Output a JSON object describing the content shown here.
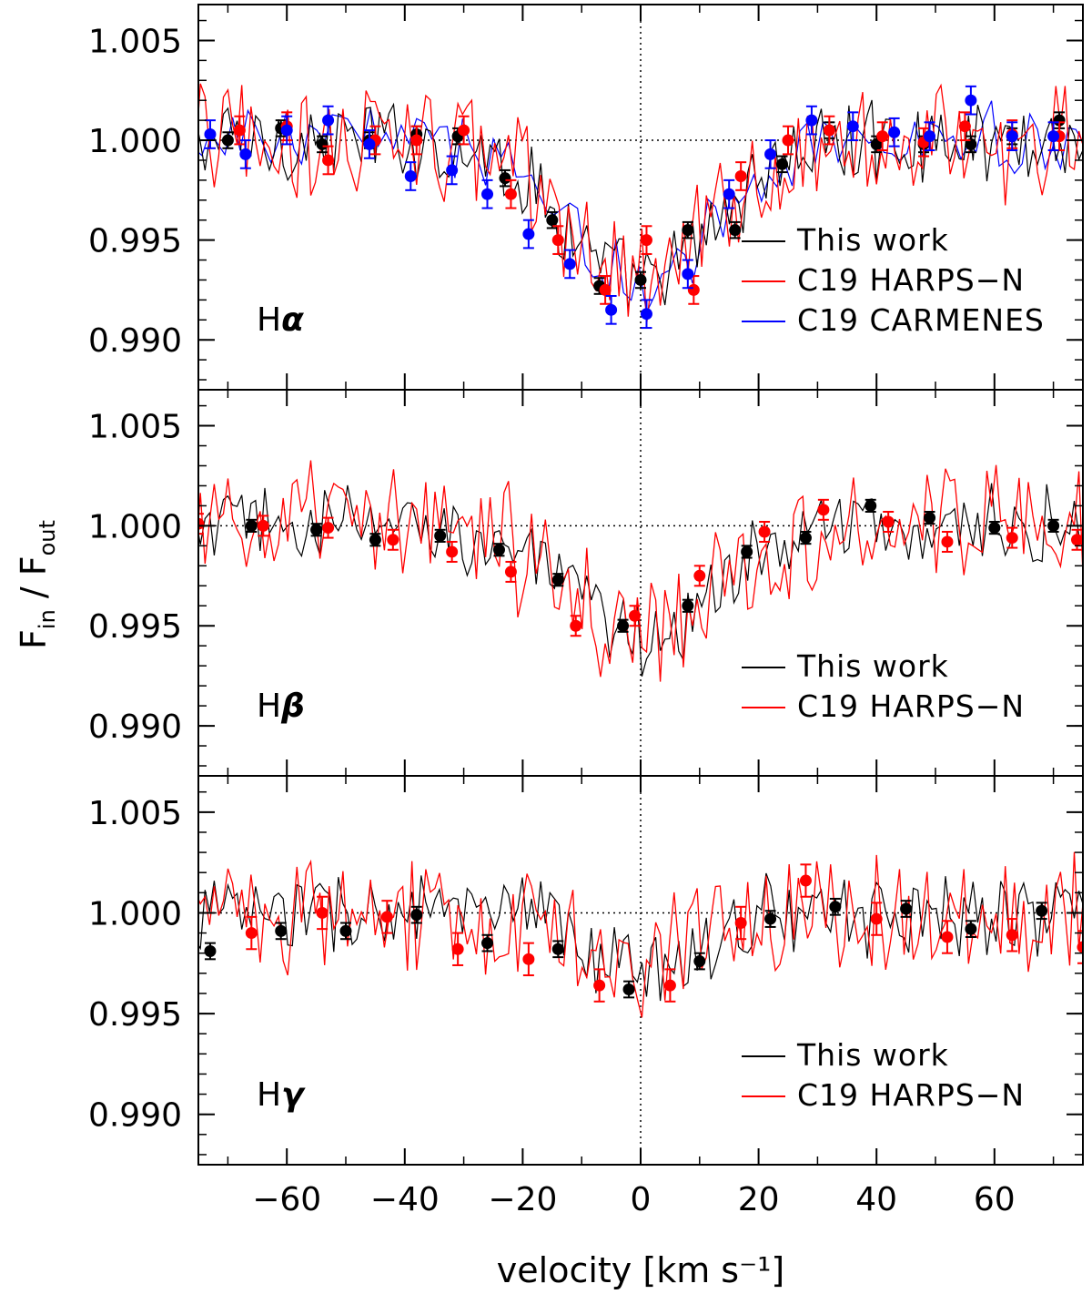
{
  "chart_data": {
    "type": "line",
    "x_label": "velocity [km s⁻¹]",
    "y_label": "F_in / F_out",
    "y_label_parts": {
      "f1": "F",
      "sub1": "in",
      "sep": " / ",
      "f2": "F",
      "sub2": "out"
    },
    "x_range": [
      -75,
      75
    ],
    "y_range": [
      0.9875,
      1.0068
    ],
    "x_ticks": [
      -60,
      -40,
      -20,
      0,
      20,
      40,
      60
    ],
    "x_tick_labels": [
      "−60",
      "−40",
      "−20",
      "0",
      "20",
      "40",
      "60"
    ],
    "y_ticks": [
      0.99,
      0.995,
      1.0,
      1.005
    ],
    "y_tick_labels": [
      "0.990",
      "0.995",
      "1.000",
      "1.005"
    ],
    "reference_lines": {
      "y": 1.0,
      "x": 0
    },
    "colors": {
      "this_work": "#000000",
      "harps": "#ff0000",
      "carmenes": "#0000ff"
    },
    "panels": [
      {
        "label_prefix": "H",
        "label_greek": "α",
        "legend": [
          "This work",
          "C19 HARPS−N",
          "C19 CARMENES"
        ],
        "profile": {
          "depth": 0.0072,
          "width": 18
        },
        "series": [
          {
            "name": "This work",
            "color": "#000000",
            "points": [
              [
                -70,
                1.0
              ],
              [
                -61,
                1.0006
              ],
              [
                -54,
                0.9998
              ],
              [
                -46,
                1.0
              ],
              [
                -38,
                1.0003
              ],
              [
                -31,
                1.0002
              ],
              [
                -23,
                0.9981
              ],
              [
                -15,
                0.996
              ],
              [
                -7,
                0.9927
              ],
              [
                0,
                0.993
              ],
              [
                8,
                0.9955
              ],
              [
                16,
                0.9955
              ],
              [
                24,
                0.9988
              ],
              [
                32,
                1.0005
              ],
              [
                40,
                0.9998
              ],
              [
                48,
                0.9998
              ],
              [
                56,
                0.9998
              ],
              [
                63,
                1.0002
              ],
              [
                71,
                1.001
              ]
            ],
            "err": 0.0004
          },
          {
            "name": "C19 HARPS−N",
            "color": "#ff0000",
            "points": [
              [
                -68,
                1.0005
              ],
              [
                -60,
                1.0007
              ],
              [
                -53,
                0.999
              ],
              [
                -45,
                1.0
              ],
              [
                -38,
                1.0
              ],
              [
                -30,
                1.0005
              ],
              [
                -22,
                0.9973
              ],
              [
                -14,
                0.995
              ],
              [
                -6,
                0.9925
              ],
              [
                1,
                0.995
              ],
              [
                9,
                0.9925
              ],
              [
                17,
                0.9982
              ],
              [
                25,
                1.0
              ],
              [
                32,
                1.0005
              ],
              [
                41,
                1.0002
              ],
              [
                48,
                0.9999
              ],
              [
                55,
                1.0007
              ],
              [
                63,
                1.0003
              ],
              [
                71,
                1.0002
              ]
            ],
            "err": 0.0007
          },
          {
            "name": "C19 CARMENES",
            "color": "#0000ff",
            "points": [
              [
                -73,
                1.0003
              ],
              [
                -67,
                0.9993
              ],
              [
                -60,
                1.0005
              ],
              [
                -53,
                1.001
              ],
              [
                -46,
                0.9998
              ],
              [
                -39,
                0.9982
              ],
              [
                -32,
                0.9985
              ],
              [
                -26,
                0.9973
              ],
              [
                -19,
                0.9953
              ],
              [
                -12,
                0.9938
              ],
              [
                -5,
                0.9915
              ],
              [
                1,
                0.9913
              ],
              [
                8,
                0.9933
              ],
              [
                15,
                0.9973
              ],
              [
                22,
                0.9993
              ],
              [
                29,
                1.001
              ],
              [
                36,
                1.0007
              ],
              [
                43,
                1.0004
              ],
              [
                49,
                1.0002
              ],
              [
                56,
                1.002
              ],
              [
                63,
                1.0002
              ],
              [
                70,
                1.0002
              ]
            ],
            "err": 0.0007
          }
        ]
      },
      {
        "label_prefix": "H",
        "label_greek": "β",
        "legend": [
          "This work",
          "C19 HARPS−N"
        ],
        "profile": {
          "depth": 0.0055,
          "width": 18
        },
        "series": [
          {
            "name": "This work",
            "color": "#000000",
            "points": [
              [
                -66,
                1.0
              ],
              [
                -55,
                0.9998
              ],
              [
                -45,
                0.9993
              ],
              [
                -34,
                0.9995
              ],
              [
                -24,
                0.9988
              ],
              [
                -14,
                0.9973
              ],
              [
                -3,
                0.995
              ],
              [
                8,
                0.996
              ],
              [
                18,
                0.9987
              ],
              [
                28,
                0.9994
              ],
              [
                39,
                1.001
              ],
              [
                49,
                1.0004
              ],
              [
                60,
                0.9999
              ],
              [
                70,
                1.0
              ]
            ],
            "err": 0.0003
          },
          {
            "name": "C19 HARPS−N",
            "color": "#ff0000",
            "points": [
              [
                -75,
                1.0001
              ],
              [
                -64,
                1.0
              ],
              [
                -53,
                0.9999
              ],
              [
                -42,
                0.9993
              ],
              [
                -32,
                0.9987
              ],
              [
                -22,
                0.9977
              ],
              [
                -11,
                0.995
              ],
              [
                -1,
                0.9955
              ],
              [
                10,
                0.9975
              ],
              [
                21,
                0.9997
              ],
              [
                31,
                1.0008
              ],
              [
                42,
                1.0002
              ],
              [
                52,
                0.9992
              ],
              [
                63,
                0.9994
              ],
              [
                74,
                0.9993
              ]
            ],
            "err": 0.0005
          }
        ]
      },
      {
        "label_prefix": "H",
        "label_greek": "γ",
        "legend": [
          "This work",
          "C19 HARPS−N"
        ],
        "profile": {
          "depth": 0.0028,
          "width": 14
        },
        "series": [
          {
            "name": "This work",
            "color": "#000000",
            "points": [
              [
                -73,
                0.9981
              ],
              [
                -61,
                0.9991
              ],
              [
                -50,
                0.9991
              ],
              [
                -38,
                0.9999
              ],
              [
                -26,
                0.9985
              ],
              [
                -14,
                0.9982
              ],
              [
                -2,
                0.9962
              ],
              [
                10,
                0.9976
              ],
              [
                22,
                0.9997
              ],
              [
                33,
                1.0003
              ],
              [
                45,
                1.0002
              ],
              [
                56,
                0.9992
              ],
              [
                68,
                1.0001
              ]
            ],
            "err": 0.0004
          },
          {
            "name": "C19 HARPS−N",
            "color": "#ff0000",
            "points": [
              [
                -66,
                0.999
              ],
              [
                -54,
                1.0
              ],
              [
                -43,
                0.9998
              ],
              [
                -31,
                0.9982
              ],
              [
                -19,
                0.9977
              ],
              [
                -7,
                0.9964
              ],
              [
                5,
                0.9964
              ],
              [
                17,
                0.9995
              ],
              [
                28,
                1.0016
              ],
              [
                40,
                0.9997
              ],
              [
                52,
                0.9988
              ],
              [
                63,
                0.9989
              ],
              [
                75,
                0.9983
              ]
            ],
            "err": 0.0008
          }
        ]
      }
    ]
  }
}
